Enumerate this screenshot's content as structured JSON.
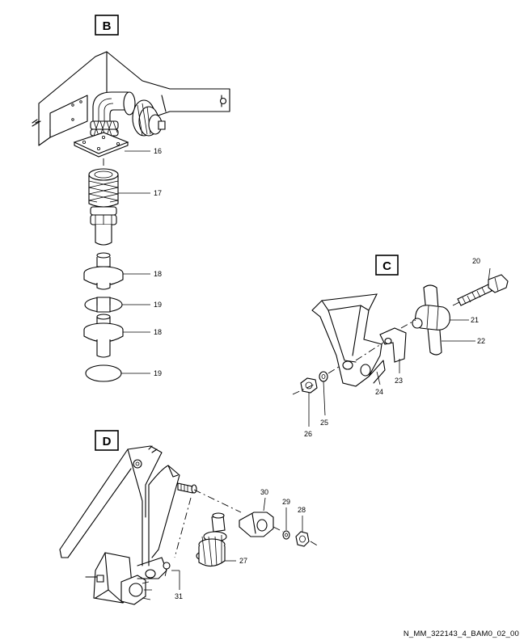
{
  "sections": {
    "B": {
      "label": "B",
      "callouts": [
        "16",
        "17",
        "18",
        "19",
        "18",
        "19"
      ]
    },
    "C": {
      "label": "C",
      "callouts": [
        "20",
        "21",
        "22",
        "23",
        "24",
        "25",
        "26"
      ]
    },
    "D": {
      "label": "D",
      "callouts": [
        "27",
        "28",
        "29",
        "30",
        "31"
      ]
    }
  },
  "drawing_code": "N_MM_322143_4_BAM0_02_00"
}
